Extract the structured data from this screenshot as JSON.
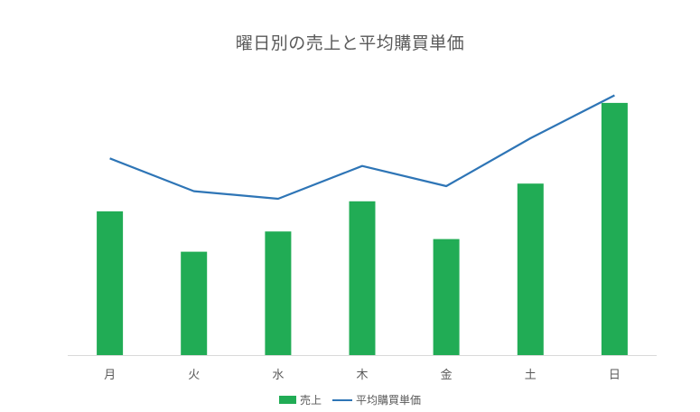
{
  "chart_data": {
    "type": "bar",
    "title": "曜日別の売上と平均購買単価",
    "categories": [
      "月",
      "火",
      "水",
      "木",
      "金",
      "土",
      "日"
    ],
    "series": [
      {
        "name": "売上",
        "type": "bar",
        "color": "#21AC55",
        "values": [
          57,
          41,
          49,
          61,
          46,
          68,
          100
        ]
      },
      {
        "name": "平均購買単価",
        "type": "line",
        "color": "#2E75B6",
        "values": [
          78,
          65,
          62,
          75,
          67,
          86,
          103
        ]
      }
    ],
    "ylim": [
      0,
      110
    ],
    "grid": false,
    "legend_position": "bottom"
  }
}
